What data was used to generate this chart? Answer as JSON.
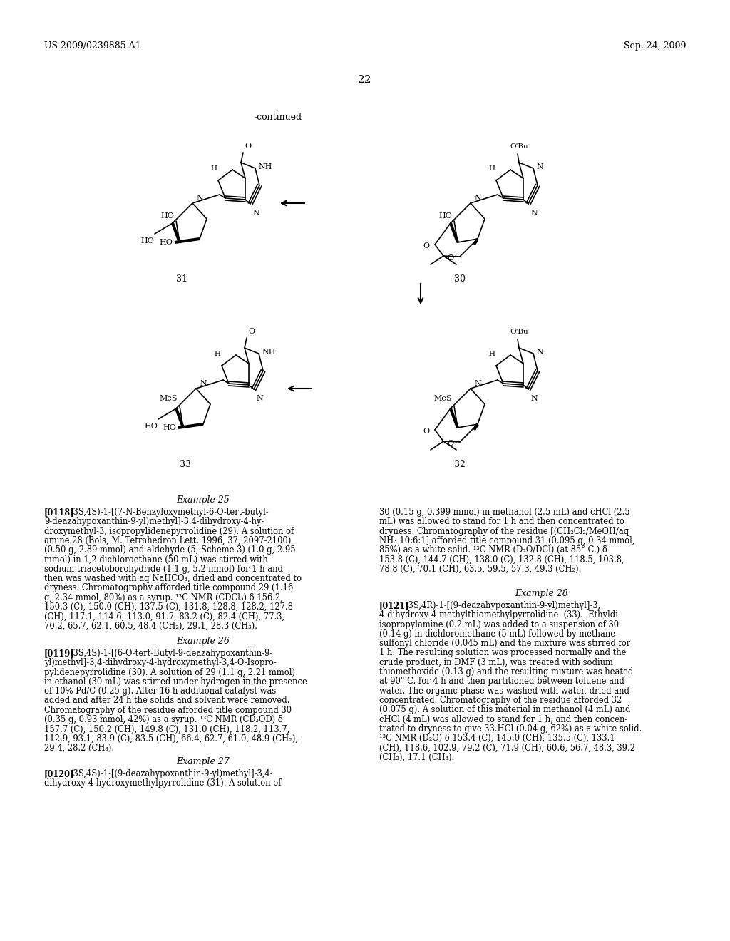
{
  "page_number": "22",
  "header_left": "US 2009/0239885 A1",
  "header_right": "Sep. 24, 2009",
  "continued_label": "-continued",
  "background_color": "#ffffff",
  "text_color": "#000000",
  "body_fs": 8.3,
  "lh": 13.2
}
